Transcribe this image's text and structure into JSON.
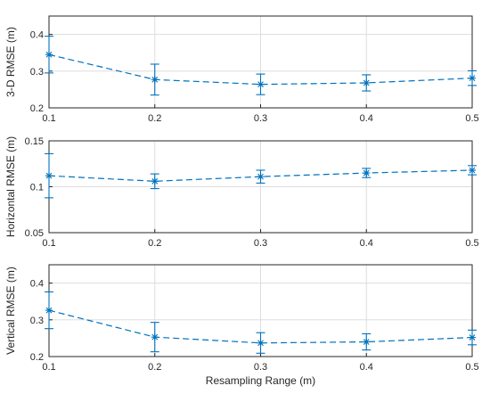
{
  "figure": {
    "accent_color": "#0072BD",
    "background": "#ffffff"
  },
  "chart_data": [
    {
      "type": "line",
      "title": "",
      "xlabel": "",
      "ylabel": "3-D RMSE (m)",
      "x": [
        0.1,
        0.2,
        0.3,
        0.4,
        0.5
      ],
      "xlim": [
        0.1,
        0.5
      ],
      "ylim": [
        0.2,
        0.45
      ],
      "xticks": [
        0.1,
        0.2,
        0.3,
        0.4,
        0.5
      ],
      "xtick_labels": [
        "0.1",
        "0.2",
        "0.3",
        "0.4",
        "0.5"
      ],
      "yticks": [
        0.2,
        0.3,
        0.4
      ],
      "ytick_labels": [
        "0.2",
        "0.3",
        "0.4"
      ],
      "grid": true,
      "series": [
        {
          "values": [
            0.345,
            0.277,
            0.264,
            0.268,
            0.281
          ],
          "error": [
            0.05,
            0.042,
            0.028,
            0.022,
            0.02
          ],
          "line_style": "dashed",
          "marker": "asterisk",
          "color": "#0072BD"
        }
      ]
    },
    {
      "type": "line",
      "title": "",
      "xlabel": "",
      "ylabel": "Horizontal RMSE (m)",
      "x": [
        0.1,
        0.2,
        0.3,
        0.4,
        0.5
      ],
      "xlim": [
        0.1,
        0.5
      ],
      "ylim": [
        0.05,
        0.15
      ],
      "xticks": [
        0.1,
        0.2,
        0.3,
        0.4,
        0.5
      ],
      "xtick_labels": [
        "0.1",
        "0.2",
        "0.3",
        "0.4",
        "0.5"
      ],
      "yticks": [
        0.05,
        0.1,
        0.15
      ],
      "ytick_labels": [
        "0.05",
        "0.1",
        "0.15"
      ],
      "grid": true,
      "series": [
        {
          "values": [
            0.112,
            0.106,
            0.111,
            0.115,
            0.118
          ],
          "error": [
            0.024,
            0.008,
            0.007,
            0.005,
            0.005
          ],
          "line_style": "dashed",
          "marker": "asterisk",
          "color": "#0072BD"
        }
      ]
    },
    {
      "type": "line",
      "title": "",
      "xlabel": "Resampling Range (m)",
      "ylabel": "Vertical RMSE (m)",
      "x": [
        0.1,
        0.2,
        0.3,
        0.4,
        0.5
      ],
      "xlim": [
        0.1,
        0.5
      ],
      "ylim": [
        0.2,
        0.45
      ],
      "xticks": [
        0.1,
        0.2,
        0.3,
        0.4,
        0.5
      ],
      "xtick_labels": [
        "0.1",
        "0.2",
        "0.3",
        "0.4",
        "0.5"
      ],
      "yticks": [
        0.2,
        0.3,
        0.4
      ],
      "ytick_labels": [
        "0.2",
        "0.3",
        "0.4"
      ],
      "grid": true,
      "series": [
        {
          "values": [
            0.326,
            0.253,
            0.237,
            0.24,
            0.252
          ],
          "error": [
            0.05,
            0.04,
            0.028,
            0.022,
            0.02
          ],
          "line_style": "dashed",
          "marker": "asterisk",
          "color": "#0072BD"
        }
      ]
    }
  ]
}
